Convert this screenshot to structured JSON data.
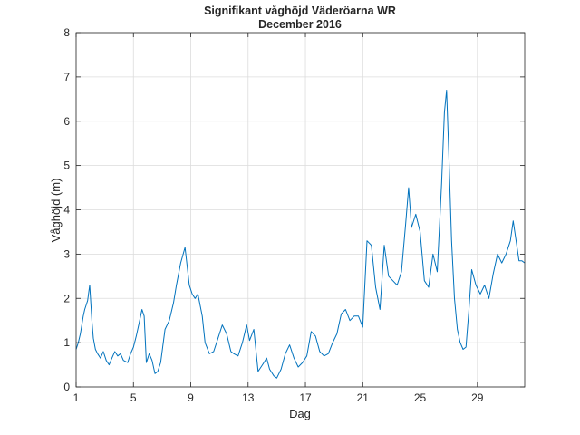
{
  "chart_data": {
    "type": "line",
    "title": "Signifikant våghöjd Väderöarna WR",
    "subtitle": "December 2016",
    "xlabel": "Dag",
    "ylabel": "Våghöjd (m)",
    "xlim": [
      1,
      32.3
    ],
    "ylim": [
      0,
      8
    ],
    "xticks": [
      1,
      5,
      9,
      13,
      17,
      21,
      25,
      29
    ],
    "yticks": [
      0,
      1,
      2,
      3,
      4,
      5,
      6,
      7,
      8
    ],
    "grid": true,
    "line_color": "#0072BD",
    "series": [
      {
        "name": "Signifikant våghöjd",
        "x": [
          1.0,
          1.15,
          1.3,
          1.5,
          1.6,
          1.8,
          1.95,
          2.1,
          2.2,
          2.35,
          2.5,
          2.7,
          2.9,
          3.1,
          3.3,
          3.5,
          3.7,
          3.9,
          4.1,
          4.3,
          4.6,
          4.8,
          5.0,
          5.2,
          5.4,
          5.6,
          5.75,
          5.9,
          6.1,
          6.3,
          6.5,
          6.7,
          6.9,
          7.2,
          7.5,
          7.8,
          8.0,
          8.3,
          8.6,
          8.9,
          9.1,
          9.3,
          9.5,
          9.8,
          10.0,
          10.3,
          10.6,
          10.9,
          11.2,
          11.5,
          11.8,
          12.0,
          12.3,
          12.6,
          12.9,
          13.1,
          13.4,
          13.7,
          14.0,
          14.3,
          14.5,
          14.8,
          15.0,
          15.3,
          15.6,
          15.9,
          16.2,
          16.5,
          16.8,
          17.1,
          17.4,
          17.7,
          18.0,
          18.3,
          18.6,
          18.9,
          19.2,
          19.5,
          19.8,
          20.1,
          20.4,
          20.7,
          21.0,
          21.3,
          21.6,
          21.9,
          22.2,
          22.5,
          22.8,
          23.1,
          23.4,
          23.7,
          24.0,
          24.2,
          24.4,
          24.7,
          25.0,
          25.3,
          25.6,
          25.9,
          26.2,
          26.5,
          26.7,
          26.85,
          27.0,
          27.2,
          27.4,
          27.6,
          27.8,
          28.0,
          28.2,
          28.4,
          28.6,
          28.9,
          29.2,
          29.5,
          29.8,
          30.1,
          30.4,
          30.7,
          31.0,
          31.3,
          31.5,
          31.7,
          31.9,
          32.1,
          32.3
        ],
        "values": [
          0.85,
          1.0,
          1.2,
          1.6,
          1.75,
          1.95,
          2.3,
          1.5,
          1.1,
          0.85,
          0.75,
          0.65,
          0.8,
          0.6,
          0.5,
          0.65,
          0.8,
          0.7,
          0.75,
          0.6,
          0.55,
          0.75,
          0.9,
          1.15,
          1.45,
          1.75,
          1.6,
          0.55,
          0.75,
          0.6,
          0.3,
          0.35,
          0.55,
          1.3,
          1.5,
          1.9,
          2.3,
          2.8,
          3.15,
          2.3,
          2.1,
          2.0,
          2.1,
          1.6,
          1.0,
          0.75,
          0.8,
          1.1,
          1.4,
          1.2,
          0.8,
          0.75,
          0.7,
          1.0,
          1.4,
          1.05,
          1.3,
          0.35,
          0.5,
          0.65,
          0.4,
          0.25,
          0.2,
          0.4,
          0.75,
          0.95,
          0.65,
          0.45,
          0.55,
          0.7,
          1.25,
          1.15,
          0.8,
          0.7,
          0.75,
          1.0,
          1.2,
          1.65,
          1.75,
          1.5,
          1.6,
          1.6,
          1.35,
          3.3,
          3.2,
          2.25,
          1.75,
          3.2,
          2.5,
          2.4,
          2.3,
          2.6,
          3.7,
          4.5,
          3.6,
          3.9,
          3.5,
          2.4,
          2.25,
          3.0,
          2.6,
          4.6,
          6.2,
          6.7,
          5.3,
          3.3,
          2.0,
          1.3,
          1.0,
          0.85,
          0.9,
          1.7,
          2.65,
          2.3,
          2.1,
          2.3,
          2.0,
          2.55,
          3.0,
          2.8,
          3.0,
          3.3,
          3.75,
          3.3,
          2.85,
          2.85,
          2.8
        ]
      }
    ]
  }
}
